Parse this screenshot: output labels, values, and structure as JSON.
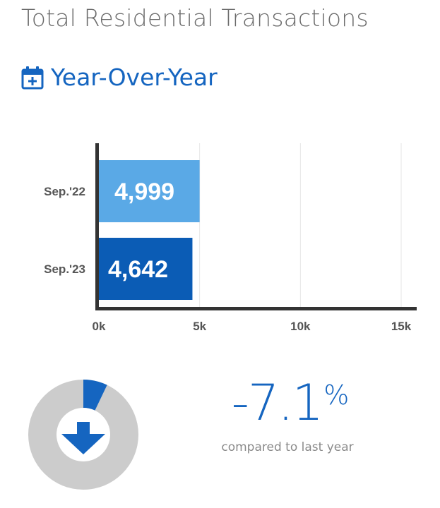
{
  "title": "Total Residential Transactions",
  "subtitle": "Year-Over-Year",
  "icons": {
    "calendar": "calendar-plus-icon",
    "arrow": "arrow-down-icon"
  },
  "colors": {
    "accent": "#1565c0",
    "bar_light": "#5aa9e6",
    "bar_dark": "#0b5cb5",
    "axis": "#333333",
    "donut_bg": "#cccccc"
  },
  "chart_data": {
    "type": "bar",
    "orientation": "horizontal",
    "categories": [
      "Sep.'22",
      "Sep.'23"
    ],
    "values": [
      4999,
      4642
    ],
    "value_labels": [
      "4,999",
      "4,642"
    ],
    "xlim": [
      0,
      15000
    ],
    "x_ticks": [
      0,
      5000,
      10000,
      15000
    ],
    "x_tick_labels": [
      "0k",
      "5k",
      "10k",
      "15k"
    ],
    "grid": true
  },
  "change": {
    "value_number": "-7.1",
    "value_unit": "%",
    "fraction": 0.071,
    "caption": "compared to last year"
  }
}
